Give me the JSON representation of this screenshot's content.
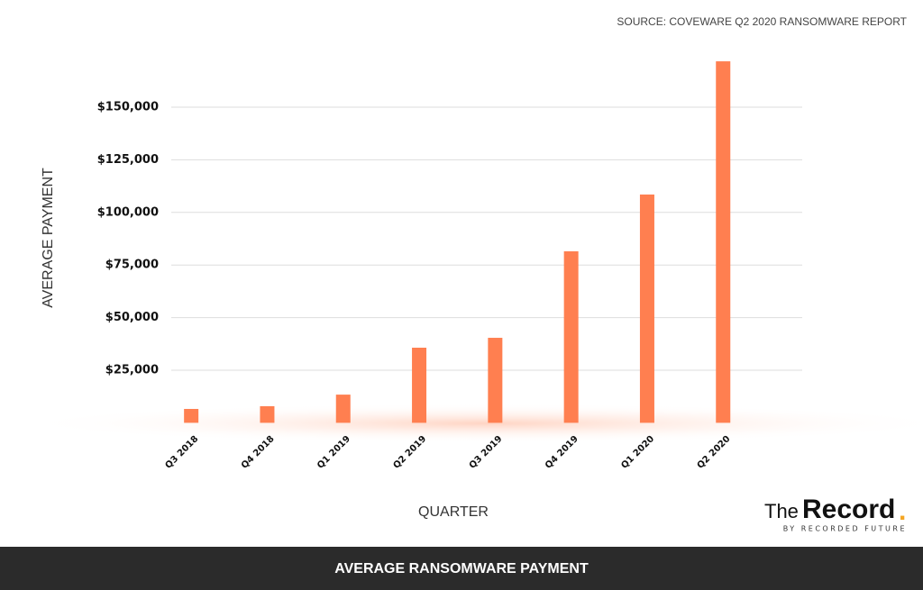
{
  "chart_data": {
    "type": "bar",
    "title": "AVERAGE RANSOMWARE PAYMENT",
    "source": "SOURCE: COVEWARE Q2 2020 RANSOMWARE REPORT",
    "x_label": "QUARTER",
    "y_label": "AVERAGE PAYMENT",
    "categories": [
      "Q3 2018",
      "Q4 2018",
      "Q1 2019",
      "Q2 2019",
      "Q3 2019",
      "Q4 2019",
      "Q1 2020",
      "Q2 2020"
    ],
    "values": [
      6600,
      7900,
      13400,
      35700,
      40400,
      81500,
      108500,
      171800
    ],
    "color": "#ff7f50",
    "ylim": [
      0,
      175000
    ],
    "yticks": [
      {
        "value": 25000,
        "label": "$25,000"
      },
      {
        "value": 50000,
        "label": "$50,000"
      },
      {
        "value": 75000,
        "label": "$75,000"
      },
      {
        "value": 100000,
        "label": "$100,000"
      },
      {
        "value": 125000,
        "label": "$125,000"
      },
      {
        "value": 150000,
        "label": "$150,000"
      }
    ],
    "grid": true
  },
  "logo": {
    "the": "The",
    "record": "Record",
    "dot": ".",
    "tagline": "BY RECORDED FUTURE"
  }
}
